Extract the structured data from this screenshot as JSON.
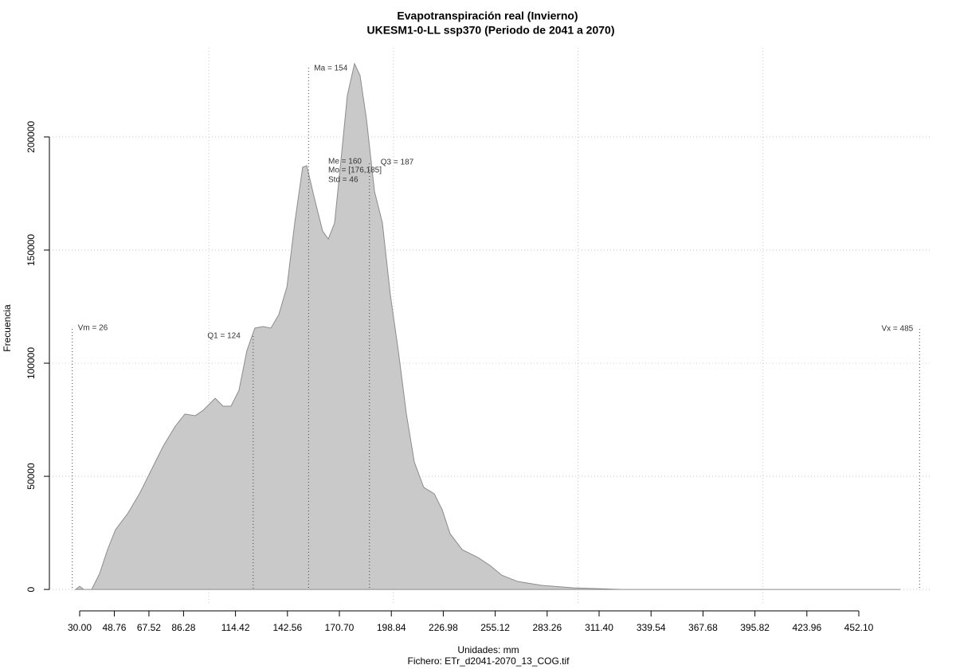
{
  "chart_data": {
    "type": "area",
    "title": "Evapotranspiración real (Invierno)",
    "subtitle": "UKESM1-0-LL ssp370 (Periodo de 2041 a 2070)",
    "x_label": "Unidades: mm",
    "y_label": "Frecuencia",
    "caption": "Fichero: ETr_d2041-2070_13_COG.tif",
    "x": [
      27.8,
      30,
      32.2,
      36.5,
      40.8,
      45.1,
      49.4,
      55.9,
      62.4,
      68.8,
      75.3,
      81.8,
      87,
      92.6,
      96.9,
      103.4,
      107.7,
      112,
      116.3,
      120.6,
      124.9,
      129.3,
      133.6,
      137.9,
      142.3,
      146.5,
      150.8,
      153,
      157.3,
      161.6,
      164.7,
      168.1,
      171.6,
      175,
      178.9,
      181.9,
      185.4,
      189.7,
      194,
      198.3,
      202.6,
      207,
      211.3,
      216.4,
      222.1,
      226.4,
      230.7,
      237.2,
      245.8,
      252.3,
      258.7,
      267.4,
      280.3,
      297.6,
      323.5,
      474.5
    ],
    "values": [
      0,
      1400,
      0,
      0,
      7000,
      17600,
      26400,
      33400,
      42300,
      52800,
      63400,
      72200,
      77500,
      76800,
      79200,
      84500,
      81000,
      81000,
      88000,
      105600,
      115500,
      116200,
      115500,
      121500,
      133800,
      162000,
      186600,
      187300,
      172500,
      158400,
      154900,
      162000,
      190100,
      218300,
      232400,
      227100,
      207700,
      176000,
      162000,
      130300,
      105600,
      77500,
      56300,
      45100,
      42300,
      35200,
      24600,
      17600,
      14100,
      10600,
      6300,
      3500,
      1800,
      700,
      0,
      0
    ],
    "color": "#c9c9c9",
    "line_color": "#8c8c8c",
    "xlim": [
      13.6,
      491.8
    ],
    "ylim": [
      -7000,
      239400
    ],
    "xticks": [
      {
        "value": 30,
        "label": "30.00"
      },
      {
        "value": 48.76,
        "label": "48.76"
      },
      {
        "value": 67.52,
        "label": "67.52"
      },
      {
        "value": 86.28,
        "label": "86.28"
      },
      {
        "value": 114.42,
        "label": "114.42"
      },
      {
        "value": 142.56,
        "label": "142.56"
      },
      {
        "value": 170.7,
        "label": "170.70"
      },
      {
        "value": 198.84,
        "label": "198.84"
      },
      {
        "value": 226.98,
        "label": "226.98"
      },
      {
        "value": 255.12,
        "label": "255.12"
      },
      {
        "value": 283.26,
        "label": "283.26"
      },
      {
        "value": 311.4,
        "label": "311.40"
      },
      {
        "value": 339.54,
        "label": "339.54"
      },
      {
        "value": 367.68,
        "label": "367.68"
      },
      {
        "value": 395.82,
        "label": "395.82"
      },
      {
        "value": 423.96,
        "label": "423.96"
      },
      {
        "value": 452.1,
        "label": "452.10"
      }
    ],
    "yticks": [
      0,
      50000,
      100000,
      150000,
      200000
    ],
    "xgrid": [
      100,
      200,
      300,
      400
    ],
    "grid": true,
    "annotations": [
      {
        "label": "Vm = 26",
        "value": 26
      },
      {
        "label": "Q1 = 124",
        "value": 124
      },
      {
        "label": "Ma = 154",
        "value": 154
      },
      {
        "label": "Me = 160"
      },
      {
        "label": "Mo = [176,185]"
      },
      {
        "label": "Std = 46"
      },
      {
        "label": "Q3 = 187",
        "value": 187
      },
      {
        "label": "Vx = 485",
        "value": 485
      }
    ]
  }
}
